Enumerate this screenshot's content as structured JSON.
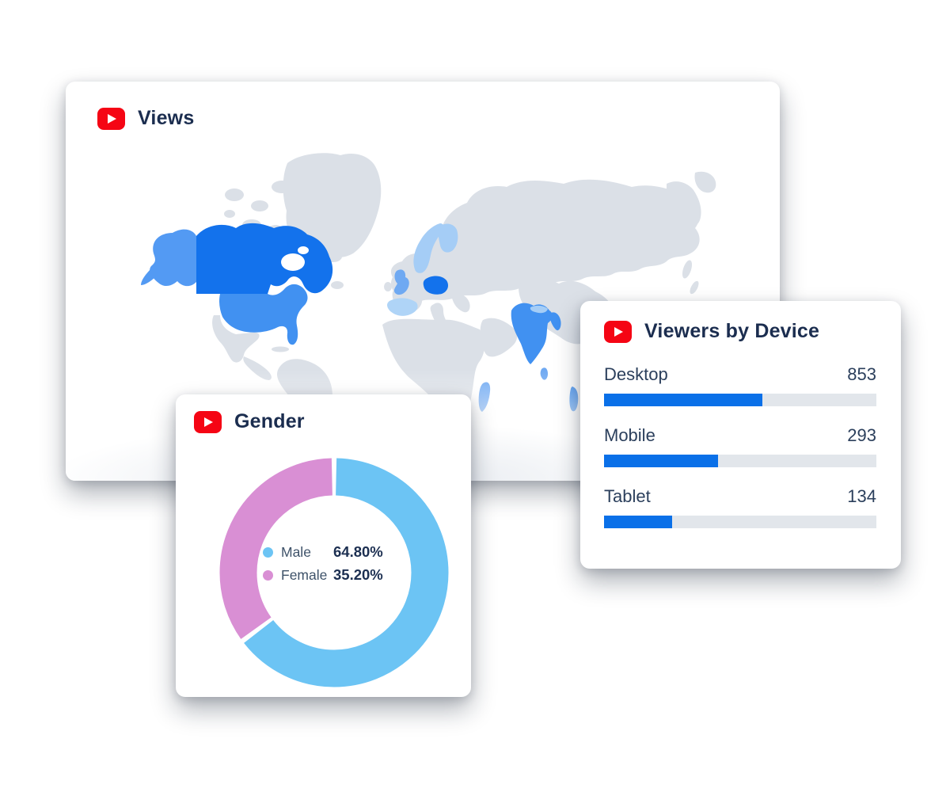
{
  "colors": {
    "title_navy": "#1B2D4F",
    "label_slate": "#2B3F5C",
    "youtube_red": "#F50514",
    "bar_fill_blue": "#0A70E8",
    "bar_track_gray": "#E2E6EB",
    "donut_male_blue": "#6CC4F4",
    "donut_female_pink": "#D98FD4",
    "map_land_gray": "#DBE0E7",
    "map_level_colors": {
      "high": "#1372EC",
      "medium": "#4191F1",
      "alaska": "#539AF3",
      "medium_light": "#6FA9F2",
      "light": "#A5CDF6",
      "lighter": "#AFD4F7"
    }
  },
  "views_card": {
    "title": "Views",
    "map_regions": {
      "canada": "high",
      "poland": "high",
      "usa": "medium",
      "india": "medium",
      "bangladesh_myanmar": "medium",
      "indonesia": "medium",
      "alaska": "alaska",
      "uk": "medium_light",
      "sri_lanka": "medium_light",
      "madagascar": "medium_light",
      "norway": "light",
      "finland": "light",
      "nepal": "light",
      "spain": "lighter"
    }
  },
  "gender_card": {
    "title": "Gender",
    "donut_gap_percent": 0.7,
    "segments": [
      {
        "label": "Male",
        "value": 64.8,
        "value_label": "64.80%",
        "color_key": "donut_male_blue"
      },
      {
        "label": "Female",
        "value": 35.2,
        "value_label": "35.20%",
        "color_key": "donut_female_pink"
      }
    ]
  },
  "device_card": {
    "title": "Viewers by Device",
    "rows": [
      {
        "label": "Desktop",
        "value": "853",
        "bar_percent": 58
      },
      {
        "label": "Mobile",
        "value": "293",
        "bar_percent": 42
      },
      {
        "label": "Tablet",
        "value": "134",
        "bar_percent": 25
      }
    ]
  },
  "chart_data": [
    {
      "type": "heatmap",
      "subtype": "world-choropleth",
      "title": "Views",
      "legend_position": "none",
      "regions": [
        {
          "name": "Canada",
          "intensity": "high"
        },
        {
          "name": "Poland",
          "intensity": "high"
        },
        {
          "name": "United States",
          "intensity": "medium"
        },
        {
          "name": "Alaska (US)",
          "intensity": "medium"
        },
        {
          "name": "India",
          "intensity": "medium"
        },
        {
          "name": "Indonesia",
          "intensity": "medium"
        },
        {
          "name": "United Kingdom",
          "intensity": "medium-light"
        },
        {
          "name": "Sri Lanka",
          "intensity": "medium-light"
        },
        {
          "name": "Madagascar",
          "intensity": "medium-light"
        },
        {
          "name": "Norway",
          "intensity": "light"
        },
        {
          "name": "Finland",
          "intensity": "light"
        },
        {
          "name": "Spain",
          "intensity": "light"
        }
      ]
    },
    {
      "type": "pie",
      "donut": true,
      "title": "Gender",
      "labels": [
        "Male",
        "Female"
      ],
      "values": [
        64.8,
        35.2
      ],
      "unit": "%",
      "colors": [
        "#6CC4F4",
        "#D98FD4"
      ],
      "legend_position": "center",
      "start_angle_deg": 0,
      "direction": "clockwise"
    },
    {
      "type": "bar",
      "orientation": "horizontal",
      "title": "Viewers by Device",
      "categories": [
        "Desktop",
        "Mobile",
        "Tablet"
      ],
      "values": [
        853,
        293,
        134
      ],
      "bar_fill_percent_of_track": [
        58,
        42,
        25
      ],
      "bar_color": "#0A70E8",
      "track_color": "#E2E6EB"
    }
  ]
}
